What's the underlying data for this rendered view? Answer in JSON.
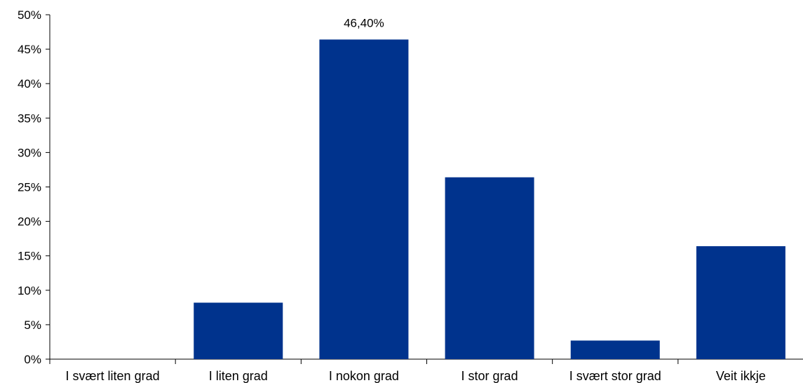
{
  "chart_data": {
    "type": "bar",
    "categories": [
      "I svært liten grad",
      "I liten grad",
      "I nokon grad",
      "I stor grad",
      "I svært stor grad",
      "Veit ikkje"
    ],
    "values": [
      0,
      8.2,
      46.4,
      26.4,
      2.7,
      16.4
    ],
    "ylim": [
      0,
      50
    ],
    "yticks": [
      "0%",
      "5%",
      "10%",
      "15%",
      "20%",
      "25%",
      "30%",
      "35%",
      "40%",
      "45%",
      "50%"
    ],
    "data_labels": [
      {
        "category": "I nokon grad",
        "text": "46,40%"
      }
    ],
    "grid": false,
    "legend": "none",
    "bar_color": "#00338D",
    "title": "",
    "xlabel": "",
    "ylabel": ""
  }
}
